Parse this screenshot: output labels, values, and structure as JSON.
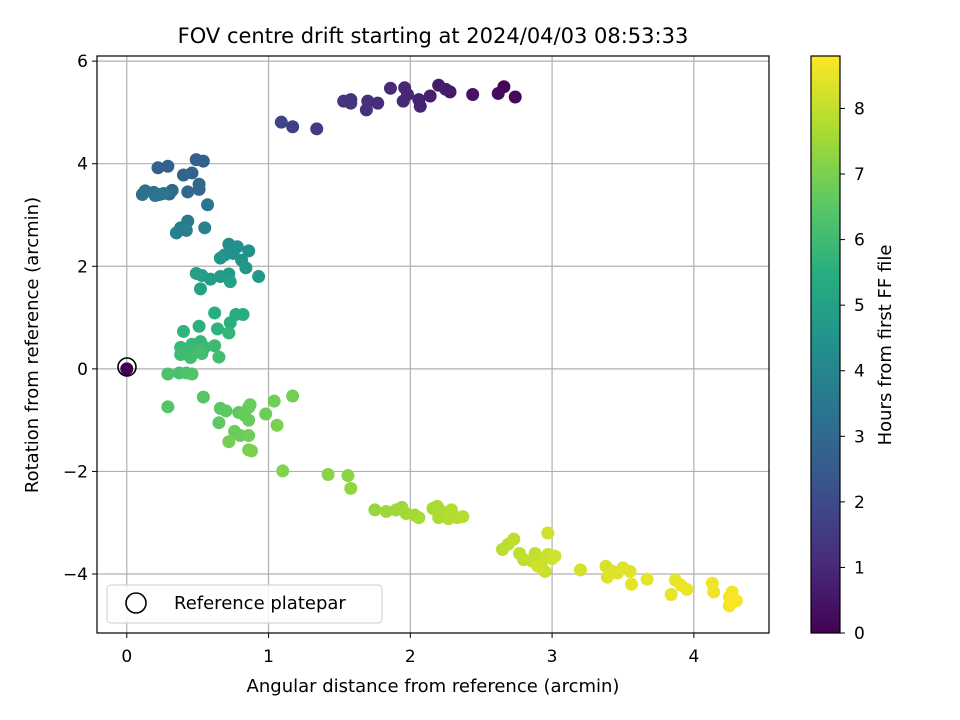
{
  "chart_data": {
    "type": "scatter",
    "title": "FOV centre drift starting at 2024/04/03 08:53:33",
    "xlabel": "Angular distance from reference (arcmin)",
    "ylabel": "Rotation from reference (arcmin)",
    "xlim": [
      -0.21,
      4.53
    ],
    "ylim": [
      -5.15,
      6.1
    ],
    "xticks": [
      0,
      1,
      2,
      3,
      4
    ],
    "xtick_labels": [
      "0",
      "1",
      "2",
      "3",
      "4"
    ],
    "yticks": [
      -4,
      -2,
      0,
      2,
      4,
      6
    ],
    "ytick_labels": [
      "−4",
      "−2",
      "0",
      "2",
      "4",
      "6"
    ],
    "grid": true,
    "legend": {
      "position": "bottom-left",
      "entries": [
        "Reference platepar"
      ]
    },
    "reference_point": {
      "x": 0,
      "y": 0,
      "label": "Reference platepar"
    },
    "colorbar": {
      "label": "Hours from first FF file",
      "colormap": "viridis",
      "range": [
        0,
        8.8
      ],
      "ticks": [
        0,
        1,
        2,
        3,
        4,
        5,
        6,
        7,
        8
      ],
      "tick_labels": [
        "0",
        "1",
        "2",
        "3",
        "4",
        "5",
        "6",
        "7",
        "8"
      ],
      "stops": [
        "#440154",
        "#472d7b",
        "#3b528b",
        "#2c728e",
        "#21918c",
        "#28ae80",
        "#5ec962",
        "#addc30",
        "#fde725"
      ]
    },
    "series": [
      {
        "values": [
          {
            "x": 2.66,
            "y": 5.5,
            "c": 0.1
          },
          {
            "x": 2.74,
            "y": 5.3,
            "c": 0.2
          },
          {
            "x": 2.62,
            "y": 5.37,
            "c": 0.3
          },
          {
            "x": 2.44,
            "y": 5.35,
            "c": 0.45
          },
          {
            "x": 2.28,
            "y": 5.4,
            "c": 0.55
          },
          {
            "x": 2.2,
            "y": 5.53,
            "c": 0.65
          },
          {
            "x": 2.25,
            "y": 5.45,
            "c": 0.7
          },
          {
            "x": 2.14,
            "y": 5.32,
            "c": 0.75
          },
          {
            "x": 2.06,
            "y": 5.25,
            "c": 0.8
          },
          {
            "x": 2.07,
            "y": 5.12,
            "c": 0.85
          },
          {
            "x": 1.98,
            "y": 5.35,
            "c": 0.9
          },
          {
            "x": 1.96,
            "y": 5.48,
            "c": 0.95
          },
          {
            "x": 1.95,
            "y": 5.22,
            "c": 1.0
          },
          {
            "x": 1.86,
            "y": 5.47,
            "c": 1.05
          },
          {
            "x": 1.77,
            "y": 5.18,
            "c": 1.1
          },
          {
            "x": 1.7,
            "y": 5.22,
            "c": 1.15
          },
          {
            "x": 1.69,
            "y": 5.05,
            "c": 1.2
          },
          {
            "x": 1.58,
            "y": 5.25,
            "c": 1.25
          },
          {
            "x": 1.53,
            "y": 5.22,
            "c": 1.3
          },
          {
            "x": 1.58,
            "y": 5.18,
            "c": 1.35
          },
          {
            "x": 1.34,
            "y": 4.68,
            "c": 1.5
          },
          {
            "x": 1.17,
            "y": 4.72,
            "c": 1.65
          },
          {
            "x": 1.09,
            "y": 4.81,
            "c": 1.75
          },
          {
            "x": 0.54,
            "y": 4.05,
            "c": 2.6
          },
          {
            "x": 0.49,
            "y": 4.08,
            "c": 2.65
          },
          {
            "x": 0.29,
            "y": 3.95,
            "c": 2.7
          },
          {
            "x": 0.22,
            "y": 3.92,
            "c": 2.75
          },
          {
            "x": 0.46,
            "y": 3.82,
            "c": 2.8
          },
          {
            "x": 0.4,
            "y": 3.78,
            "c": 2.85
          },
          {
            "x": 0.51,
            "y": 3.6,
            "c": 2.9
          },
          {
            "x": 0.51,
            "y": 3.5,
            "c": 2.95
          },
          {
            "x": 0.43,
            "y": 3.45,
            "c": 3.0
          },
          {
            "x": 0.32,
            "y": 3.48,
            "c": 3.05
          },
          {
            "x": 0.3,
            "y": 3.41,
            "c": 3.1
          },
          {
            "x": 0.23,
            "y": 3.4,
            "c": 3.15
          },
          {
            "x": 0.19,
            "y": 3.44,
            "c": 3.2
          },
          {
            "x": 0.13,
            "y": 3.47,
            "c": 3.25
          },
          {
            "x": 0.11,
            "y": 3.4,
            "c": 3.3
          },
          {
            "x": 0.2,
            "y": 3.38,
            "c": 3.35
          },
          {
            "x": 0.26,
            "y": 3.42,
            "c": 3.4
          },
          {
            "x": 0.57,
            "y": 3.2,
            "c": 3.45
          },
          {
            "x": 0.43,
            "y": 2.88,
            "c": 3.6
          },
          {
            "x": 0.38,
            "y": 2.75,
            "c": 3.7
          },
          {
            "x": 0.42,
            "y": 2.7,
            "c": 3.75
          },
          {
            "x": 0.35,
            "y": 2.65,
            "c": 3.8
          },
          {
            "x": 0.55,
            "y": 2.75,
            "c": 3.85
          },
          {
            "x": 0.72,
            "y": 2.43,
            "c": 4.3
          },
          {
            "x": 0.78,
            "y": 2.38,
            "c": 4.35
          },
          {
            "x": 0.86,
            "y": 2.3,
            "c": 4.4
          },
          {
            "x": 0.75,
            "y": 2.25,
            "c": 4.45
          },
          {
            "x": 0.69,
            "y": 2.22,
            "c": 4.5
          },
          {
            "x": 0.81,
            "y": 2.12,
            "c": 4.55
          },
          {
            "x": 0.66,
            "y": 2.16,
            "c": 4.6
          },
          {
            "x": 0.84,
            "y": 1.97,
            "c": 4.65
          },
          {
            "x": 0.93,
            "y": 1.8,
            "c": 4.7
          },
          {
            "x": 0.72,
            "y": 1.85,
            "c": 4.75
          },
          {
            "x": 0.66,
            "y": 1.8,
            "c": 4.8
          },
          {
            "x": 0.59,
            "y": 1.75,
            "c": 4.85
          },
          {
            "x": 0.53,
            "y": 1.82,
            "c": 4.9
          },
          {
            "x": 0.49,
            "y": 1.86,
            "c": 4.95
          },
          {
            "x": 0.73,
            "y": 1.7,
            "c": 5.0
          },
          {
            "x": 0.52,
            "y": 1.56,
            "c": 5.05
          },
          {
            "x": 0.77,
            "y": 1.06,
            "c": 5.4
          },
          {
            "x": 0.82,
            "y": 1.06,
            "c": 5.45
          },
          {
            "x": 0.62,
            "y": 1.09,
            "c": 5.5
          },
          {
            "x": 0.73,
            "y": 0.9,
            "c": 5.55
          },
          {
            "x": 0.51,
            "y": 0.83,
            "c": 5.6
          },
          {
            "x": 0.64,
            "y": 0.78,
            "c": 5.65
          },
          {
            "x": 0.4,
            "y": 0.73,
            "c": 5.7
          },
          {
            "x": 0.72,
            "y": 0.7,
            "c": 5.75
          },
          {
            "x": 0.52,
            "y": 0.53,
            "c": 5.8
          },
          {
            "x": 0.46,
            "y": 0.48,
            "c": 5.85
          },
          {
            "x": 0.38,
            "y": 0.42,
            "c": 5.9
          },
          {
            "x": 0.55,
            "y": 0.42,
            "c": 5.9
          },
          {
            "x": 0.62,
            "y": 0.45,
            "c": 5.95
          },
          {
            "x": 0.43,
            "y": 0.37,
            "c": 5.95
          },
          {
            "x": 0.5,
            "y": 0.35,
            "c": 6.0
          },
          {
            "x": 0.38,
            "y": 0.28,
            "c": 6.0
          },
          {
            "x": 0.45,
            "y": 0.22,
            "c": 6.05
          },
          {
            "x": 0.65,
            "y": 0.23,
            "c": 6.05
          },
          {
            "x": 0.53,
            "y": 0.3,
            "c": 6.1
          },
          {
            "x": 0.37,
            "y": -0.08,
            "c": 6.2
          },
          {
            "x": 0.29,
            "y": -0.1,
            "c": 6.25
          },
          {
            "x": 0.42,
            "y": -0.08,
            "c": 6.3
          },
          {
            "x": 0.46,
            "y": -0.1,
            "c": 6.35
          },
          {
            "x": 0.29,
            "y": -0.74,
            "c": 6.4
          },
          {
            "x": 0.54,
            "y": -0.55,
            "c": 6.45
          },
          {
            "x": 0.66,
            "y": -0.77,
            "c": 6.5
          },
          {
            "x": 0.7,
            "y": -0.82,
            "c": 6.55
          },
          {
            "x": 0.79,
            "y": -0.85,
            "c": 6.6
          },
          {
            "x": 0.86,
            "y": -0.75,
            "c": 6.65
          },
          {
            "x": 0.83,
            "y": -0.9,
            "c": 6.7
          },
          {
            "x": 0.87,
            "y": -0.7,
            "c": 6.75
          },
          {
            "x": 0.98,
            "y": -0.88,
            "c": 6.8
          },
          {
            "x": 1.04,
            "y": -0.63,
            "c": 6.85
          },
          {
            "x": 1.17,
            "y": -0.53,
            "c": 6.9
          },
          {
            "x": 0.65,
            "y": -1.05,
            "c": 6.6
          },
          {
            "x": 0.86,
            "y": -1.0,
            "c": 6.7
          },
          {
            "x": 0.76,
            "y": -1.22,
            "c": 6.75
          },
          {
            "x": 0.8,
            "y": -1.3,
            "c": 6.8
          },
          {
            "x": 0.86,
            "y": -1.3,
            "c": 6.85
          },
          {
            "x": 0.72,
            "y": -1.42,
            "c": 6.9
          },
          {
            "x": 0.86,
            "y": -1.58,
            "c": 6.95
          },
          {
            "x": 0.88,
            "y": -1.6,
            "c": 7.0
          },
          {
            "x": 1.06,
            "y": -1.1,
            "c": 7.0
          },
          {
            "x": 1.1,
            "y": -1.99,
            "c": 7.1
          },
          {
            "x": 1.42,
            "y": -2.06,
            "c": 7.2
          },
          {
            "x": 1.56,
            "y": -2.08,
            "c": 7.25
          },
          {
            "x": 1.58,
            "y": -2.33,
            "c": 7.3
          },
          {
            "x": 1.75,
            "y": -2.75,
            "c": 7.4
          },
          {
            "x": 1.83,
            "y": -2.78,
            "c": 7.45
          },
          {
            "x": 1.9,
            "y": -2.75,
            "c": 7.5
          },
          {
            "x": 1.94,
            "y": -2.7,
            "c": 7.5
          },
          {
            "x": 1.97,
            "y": -2.82,
            "c": 7.55
          },
          {
            "x": 2.03,
            "y": -2.85,
            "c": 7.55
          },
          {
            "x": 2.06,
            "y": -2.9,
            "c": 7.6
          },
          {
            "x": 2.16,
            "y": -2.72,
            "c": 7.6
          },
          {
            "x": 2.19,
            "y": -2.68,
            "c": 7.65
          },
          {
            "x": 2.22,
            "y": -2.78,
            "c": 7.65
          },
          {
            "x": 2.25,
            "y": -2.85,
            "c": 7.7
          },
          {
            "x": 2.2,
            "y": -2.9,
            "c": 7.7
          },
          {
            "x": 2.27,
            "y": -2.92,
            "c": 7.75
          },
          {
            "x": 2.29,
            "y": -2.75,
            "c": 7.75
          },
          {
            "x": 2.33,
            "y": -2.9,
            "c": 7.8
          },
          {
            "x": 2.37,
            "y": -2.88,
            "c": 7.8
          },
          {
            "x": 2.65,
            "y": -3.52,
            "c": 7.85
          },
          {
            "x": 2.69,
            "y": -3.42,
            "c": 7.9
          },
          {
            "x": 2.73,
            "y": -3.32,
            "c": 7.9
          },
          {
            "x": 2.77,
            "y": -3.6,
            "c": 7.95
          },
          {
            "x": 2.8,
            "y": -3.72,
            "c": 7.95
          },
          {
            "x": 2.86,
            "y": -3.75,
            "c": 8.0
          },
          {
            "x": 2.88,
            "y": -3.6,
            "c": 8.0
          },
          {
            "x": 2.92,
            "y": -3.82,
            "c": 8.05
          },
          {
            "x": 2.94,
            "y": -3.7,
            "c": 8.05
          },
          {
            "x": 2.95,
            "y": -3.95,
            "c": 8.1
          },
          {
            "x": 2.97,
            "y": -3.62,
            "c": 8.1
          },
          {
            "x": 3.0,
            "y": -3.7,
            "c": 8.15
          },
          {
            "x": 3.02,
            "y": -3.65,
            "c": 8.15
          },
          {
            "x": 2.97,
            "y": -3.2,
            "c": 8.2
          },
          {
            "x": 2.9,
            "y": -3.85,
            "c": 8.2
          },
          {
            "x": 3.2,
            "y": -3.92,
            "c": 8.25
          },
          {
            "x": 3.38,
            "y": -3.85,
            "c": 8.3
          },
          {
            "x": 3.43,
            "y": -3.95,
            "c": 8.3
          },
          {
            "x": 3.39,
            "y": -4.06,
            "c": 8.35
          },
          {
            "x": 3.46,
            "y": -3.98,
            "c": 8.35
          },
          {
            "x": 3.5,
            "y": -3.88,
            "c": 8.4
          },
          {
            "x": 3.55,
            "y": -3.95,
            "c": 8.4
          },
          {
            "x": 3.56,
            "y": -4.2,
            "c": 8.45
          },
          {
            "x": 3.67,
            "y": -4.1,
            "c": 8.45
          },
          {
            "x": 3.84,
            "y": -4.4,
            "c": 8.5
          },
          {
            "x": 3.87,
            "y": -4.12,
            "c": 8.5
          },
          {
            "x": 3.91,
            "y": -4.22,
            "c": 8.55
          },
          {
            "x": 3.95,
            "y": -4.3,
            "c": 8.55
          },
          {
            "x": 4.13,
            "y": -4.18,
            "c": 8.6
          },
          {
            "x": 4.14,
            "y": -4.35,
            "c": 8.6
          },
          {
            "x": 4.25,
            "y": -4.45,
            "c": 8.65
          },
          {
            "x": 4.27,
            "y": -4.35,
            "c": 8.65
          },
          {
            "x": 4.25,
            "y": -4.62,
            "c": 8.7
          },
          {
            "x": 4.3,
            "y": -4.52,
            "c": 8.7
          },
          {
            "x": 4.26,
            "y": -4.5,
            "c": 8.75
          }
        ]
      }
    ]
  }
}
